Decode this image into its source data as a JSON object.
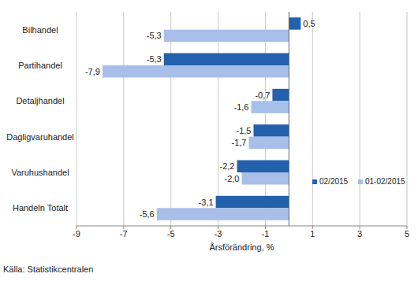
{
  "chart_data": {
    "type": "bar",
    "orientation": "horizontal",
    "x_label": "Årsförändring, %",
    "source": "Källa: Statistikcentralen",
    "categories": [
      "Bilhandel",
      "Partihandel",
      "Detaljhandel",
      "Dagligvaruhandel",
      "Varuhushandel",
      "Handeln Totalt"
    ],
    "series": [
      {
        "name": "02/2015",
        "color": "#2461ad",
        "values": [
          0.5,
          -5.3,
          -0.7,
          -1.5,
          -2.2,
          -3.1
        ],
        "value_labels": [
          "0,5",
          "-5,3",
          "-0,7",
          "-1,5",
          "-2,2",
          "-3,1"
        ]
      },
      {
        "name": "01-02/2015",
        "color": "#a8bfe9",
        "values": [
          -5.3,
          -7.9,
          -1.6,
          -1.7,
          -2.0,
          -5.6
        ],
        "value_labels": [
          "-5,3",
          "-7,9",
          "-1,6",
          "-1,7",
          "-2,0",
          "-5,6"
        ]
      }
    ],
    "xlim": [
      -9,
      5
    ],
    "xticks": [
      -9,
      -7,
      -5,
      -3,
      -1,
      1,
      3,
      5
    ],
    "grid": true,
    "data_labels": true,
    "legend": "lower right"
  }
}
